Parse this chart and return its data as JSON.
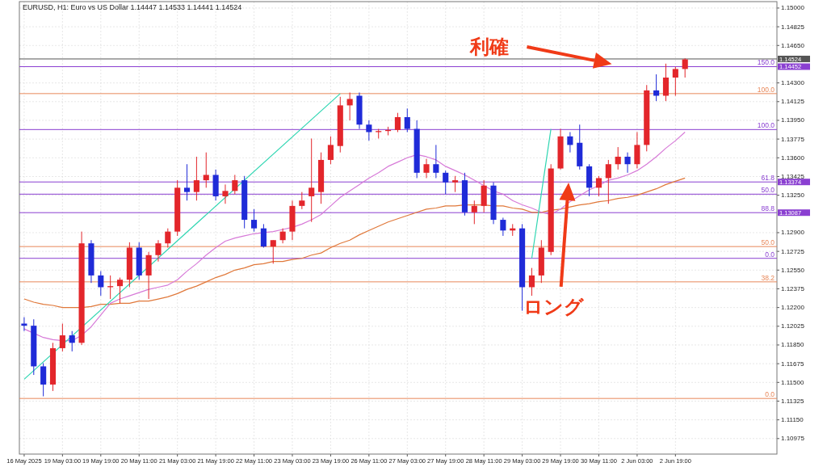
{
  "chart_data": {
    "type": "candlestick",
    "title": "EURUSD, H1:  Euro vs US Dollar  1.14447 1.14533 1.14441 1.14524",
    "categories": [
      "16 May 2025",
      null,
      null,
      null,
      "19 May 03:00",
      null,
      null,
      null,
      "19 May 19:00",
      null,
      null,
      null,
      "20 May 11:00",
      null,
      null,
      null,
      "21 May 03:00",
      null,
      null,
      null,
      "21 May 19:00",
      null,
      null,
      null,
      "22 May 11:00",
      null,
      null,
      null,
      "23 May 03:00",
      null,
      null,
      null,
      "23 May 19:00",
      null,
      null,
      null,
      "26 May 11:00",
      null,
      null,
      null,
      "27 May 03:00",
      null,
      null,
      null,
      "27 May 19:00",
      null,
      null,
      null,
      "28 May 11:00",
      null,
      null,
      null,
      "29 May 03:00",
      null,
      null,
      null,
      "29 May 19:00",
      null,
      null,
      null,
      "30 May 11:00",
      null,
      null,
      null,
      "2 Jun 03:00",
      null,
      null,
      null,
      "2 Jun 19:00",
      null
    ],
    "ohlc": [
      [
        1.1205,
        1.1211,
        1.1198,
        1.1203
      ],
      [
        1.1203,
        1.1209,
        1.1157,
        1.1165
      ],
      [
        1.1165,
        1.1168,
        1.1137,
        1.1148
      ],
      [
        1.1148,
        1.1187,
        1.1142,
        1.1182
      ],
      [
        1.1182,
        1.1205,
        1.1179,
        1.1194
      ],
      [
        1.1194,
        1.1198,
        1.1179,
        1.1187
      ],
      [
        1.1187,
        1.1291,
        1.1185,
        1.128
      ],
      [
        1.128,
        1.1283,
        1.1243,
        1.125
      ],
      [
        1.125,
        1.1254,
        1.1231,
        1.1239
      ],
      [
        1.1239,
        1.125,
        1.1228,
        1.124
      ],
      [
        1.124,
        1.1248,
        1.1224,
        1.1246
      ],
      [
        1.1246,
        1.1281,
        1.1239,
        1.1276
      ],
      [
        1.1276,
        1.1281,
        1.1246,
        1.125
      ],
      [
        1.125,
        1.1272,
        1.1228,
        1.1269
      ],
      [
        1.1269,
        1.1283,
        1.1263,
        1.128
      ],
      [
        1.128,
        1.1294,
        1.1276,
        1.1291
      ],
      [
        1.1291,
        1.1339,
        1.1287,
        1.1332
      ],
      [
        1.1332,
        1.1354,
        1.132,
        1.1328
      ],
      [
        1.1328,
        1.1361,
        1.132,
        1.1339
      ],
      [
        1.1339,
        1.1365,
        1.1332,
        1.1344
      ],
      [
        1.1344,
        1.1349,
        1.132,
        1.1324
      ],
      [
        1.1324,
        1.1335,
        1.1317,
        1.1329
      ],
      [
        1.1329,
        1.1344,
        1.1326,
        1.1339
      ],
      [
        1.1339,
        1.1343,
        1.1294,
        1.1302
      ],
      [
        1.1302,
        1.1312,
        1.1291,
        1.1294
      ],
      [
        1.1294,
        1.1298,
        1.1276,
        1.1277
      ],
      [
        1.1277,
        1.1283,
        1.1261,
        1.1283
      ],
      [
        1.1283,
        1.1294,
        1.128,
        1.1291
      ],
      [
        1.1291,
        1.132,
        1.1283,
        1.1315
      ],
      [
        1.1315,
        1.1328,
        1.1312,
        1.132
      ],
      [
        1.1324,
        1.1378,
        1.13,
        1.1332
      ],
      [
        1.1328,
        1.1365,
        1.1317,
        1.1358
      ],
      [
        1.1358,
        1.138,
        1.1354,
        1.1372
      ],
      [
        1.1371,
        1.1417,
        1.1365,
        1.1409
      ],
      [
        1.1409,
        1.1421,
        1.1395,
        1.1415
      ],
      [
        1.1418,
        1.1421,
        1.1387,
        1.1391
      ],
      [
        1.1391,
        1.1395,
        1.1376,
        1.1384
      ],
      [
        1.1384,
        1.1387,
        1.1378,
        1.1385
      ],
      [
        1.1385,
        1.1389,
        1.1381,
        1.1386
      ],
      [
        1.1386,
        1.1402,
        1.1384,
        1.1398
      ],
      [
        1.1398,
        1.1406,
        1.1384,
        1.1387
      ],
      [
        1.1387,
        1.1395,
        1.1341,
        1.1346
      ],
      [
        1.1346,
        1.1359,
        1.1341,
        1.1354
      ],
      [
        1.1354,
        1.1372,
        1.1341,
        1.1346
      ],
      [
        1.1346,
        1.1348,
        1.1326,
        1.1337
      ],
      [
        1.1337,
        1.1343,
        1.1328,
        1.1339
      ],
      [
        1.1339,
        1.1346,
        1.1306,
        1.1309
      ],
      [
        1.1309,
        1.132,
        1.1298,
        1.1315
      ],
      [
        1.1315,
        1.1339,
        1.1309,
        1.1334
      ],
      [
        1.1334,
        1.1337,
        1.1298,
        1.1302
      ],
      [
        1.1302,
        1.1304,
        1.1287,
        1.1292
      ],
      [
        1.1292,
        1.1298,
        1.1287,
        1.1294
      ],
      [
        1.1294,
        1.1298,
        1.1217,
        1.1239
      ],
      [
        1.1239,
        1.1257,
        1.1231,
        1.125
      ],
      [
        1.125,
        1.1283,
        1.1243,
        1.1276
      ],
      [
        1.1272,
        1.1354,
        1.1269,
        1.135
      ],
      [
        1.135,
        1.1387,
        1.1349,
        1.138
      ],
      [
        1.138,
        1.1384,
        1.1365,
        1.1372
      ],
      [
        1.1374,
        1.1391,
        1.1349,
        1.1352
      ],
      [
        1.1352,
        1.1354,
        1.1324,
        1.1332
      ],
      [
        1.1332,
        1.1343,
        1.1324,
        1.1341
      ],
      [
        1.1341,
        1.1358,
        1.1317,
        1.1354
      ],
      [
        1.1354,
        1.137,
        1.1349,
        1.1361
      ],
      [
        1.1361,
        1.1365,
        1.1346,
        1.1354
      ],
      [
        1.1354,
        1.1384,
        1.135,
        1.1372
      ],
      [
        1.1372,
        1.1428,
        1.1366,
        1.1423
      ],
      [
        1.1423,
        1.1438,
        1.1413,
        1.1418
      ],
      [
        1.1418,
        1.1448,
        1.1413,
        1.1435
      ],
      [
        1.1435,
        1.1445,
        1.1418,
        1.1443
      ],
      [
        1.1443,
        1.1453,
        1.1435,
        1.1452
      ]
    ],
    "series": [
      {
        "type": "line",
        "color": "#e0783a",
        "values": [
          1.1228,
          1.1225,
          1.1223,
          1.1222,
          1.122,
          1.122,
          1.122,
          1.1221,
          1.1223,
          1.1223,
          1.1224,
          1.1224,
          1.1226,
          1.1226,
          1.1228,
          1.123,
          1.1233,
          1.1237,
          1.124,
          1.1244,
          1.1248,
          1.1251,
          1.1255,
          1.1257,
          1.126,
          1.1261,
          1.1263,
          1.1263,
          1.1265,
          1.1266,
          1.1269,
          1.1271,
          1.1276,
          1.128,
          1.1283,
          1.1288,
          1.1292,
          1.1296,
          1.13,
          1.1303,
          1.1306,
          1.1309,
          1.1312,
          1.1313,
          1.1315,
          1.1315,
          1.1316,
          1.1316,
          1.1316,
          1.1315,
          1.1315,
          1.1313,
          1.1312,
          1.1309,
          1.1309,
          1.1311,
          1.1312,
          1.1314,
          1.1316,
          1.1317,
          1.1319,
          1.132,
          1.1322,
          1.1323,
          1.1325,
          1.1328,
          1.1331,
          1.1335,
          1.1338,
          1.1341
        ]
      },
      {
        "type": "line",
        "color": "#d77ad8",
        "values": [
          1.12,
          1.1196,
          1.1192,
          1.119,
          1.1189,
          1.1189,
          1.1194,
          1.1202,
          1.1213,
          1.1224,
          1.1228,
          1.1231,
          1.1234,
          1.1237,
          1.1239,
          1.1241,
          1.1246,
          1.1254,
          1.1261,
          1.1269,
          1.1276,
          1.1282,
          1.1285,
          1.1287,
          1.1289,
          1.129,
          1.1291,
          1.1293,
          1.1295,
          1.1298,
          1.1302,
          1.1307,
          1.1315,
          1.1323,
          1.1329,
          1.1335,
          1.1341,
          1.1346,
          1.1352,
          1.1356,
          1.136,
          1.1363,
          1.1361,
          1.1358,
          1.1352,
          1.1348,
          1.1344,
          1.1339,
          1.1334,
          1.1329,
          1.1326,
          1.132,
          1.1316,
          1.1313,
          1.1309,
          1.1307,
          1.1312,
          1.1319,
          null,
          1.133,
          1.1334,
          1.1339,
          1.1341,
          1.1344,
          1.1348,
          1.1354,
          1.1361,
          1.1369,
          1.1376,
          1.1384
        ]
      },
      {
        "type": "line",
        "color": "#2fd6b2",
        "values": [
          1.1153,
          null,
          null,
          null,
          null,
          null,
          null,
          null,
          null,
          null,
          null,
          null,
          null,
          null,
          null,
          null,
          null,
          null,
          null,
          null,
          null,
          null,
          null,
          null,
          null,
          null,
          null,
          null,
          null,
          null,
          null,
          null,
          null,
          1.142,
          null,
          null,
          null,
          null,
          null,
          null,
          null,
          null,
          null,
          null,
          null,
          null,
          null,
          null,
          null,
          null,
          null,
          null,
          null,
          null,
          null,
          null,
          null,
          null,
          null,
          null,
          null,
          null,
          null,
          null,
          null,
          null,
          null,
          null,
          null,
          null
        ]
      },
      {
        "type": "line",
        "color": "#2fd6b2",
        "values": [
          null,
          null,
          null,
          null,
          null,
          null,
          null,
          null,
          null,
          null,
          null,
          null,
          null,
          null,
          null,
          null,
          null,
          null,
          null,
          null,
          null,
          null,
          null,
          null,
          null,
          null,
          null,
          null,
          null,
          null,
          null,
          null,
          null,
          null,
          null,
          null,
          null,
          null,
          null,
          null,
          null,
          null,
          null,
          null,
          null,
          null,
          null,
          null,
          null,
          null,
          null,
          null,
          null,
          1.1266,
          null,
          1.1387,
          null,
          null,
          null,
          null,
          null,
          null,
          null,
          null,
          null,
          null,
          null,
          null,
          null,
          null
        ]
      }
    ],
    "ylim": [
      1.1083,
      1.1506
    ],
    "yticks": [
      {
        "value": 1.15,
        "label": "1.15000"
      },
      {
        "value": 1.14825,
        "label": "1.14825"
      },
      {
        "value": 1.1465,
        "label": "1.14650"
      },
      {
        "value": 1.143,
        "label": "1.14300"
      },
      {
        "value": 1.14125,
        "label": "1.14125"
      },
      {
        "value": 1.1395,
        "label": "1.13950"
      },
      {
        "value": 1.13775,
        "label": "1.13775"
      },
      {
        "value": 1.136,
        "label": "1.13600"
      },
      {
        "value": 1.13425,
        "label": "1.13425"
      },
      {
        "value": 1.1325,
        "label": "1.13250"
      },
      {
        "value": 1.129,
        "label": "1.12900"
      },
      {
        "value": 1.12725,
        "label": "1.12725"
      },
      {
        "value": 1.1255,
        "label": "1.12550"
      },
      {
        "value": 1.12375,
        "label": "1.12375"
      },
      {
        "value": 1.122,
        "label": "1.12200"
      },
      {
        "value": 1.12025,
        "label": "1.12025"
      },
      {
        "value": 1.1185,
        "label": "1.11850"
      },
      {
        "value": 1.11675,
        "label": "1.11675"
      },
      {
        "value": 1.115,
        "label": "1.11500"
      },
      {
        "value": 1.11325,
        "label": "1.11325"
      },
      {
        "value": 1.1115,
        "label": "1.11150"
      },
      {
        "value": 1.10975,
        "label": "1.10975"
      }
    ],
    "grid": true,
    "ref_lines": [
      {
        "axis": "y",
        "value": 1.14524,
        "label": "1.14524",
        "color": "#555555"
      },
      {
        "axis": "y",
        "value": 1.14452,
        "label": "1.14452",
        "color": "#8a3fd1"
      },
      {
        "axis": "y",
        "value": 1.142,
        "color": "#e8885a"
      },
      {
        "axis": "y",
        "value": 1.13864,
        "color": "#8a3fd1"
      },
      {
        "axis": "y",
        "value": 1.13374,
        "label": "1.13374",
        "color": "#8a3fd1"
      },
      {
        "axis": "y",
        "value": 1.1326,
        "color": "#8a3fd1"
      },
      {
        "axis": "y",
        "value": 1.13087,
        "label": "1.13087",
        "color": "#8a3fd1"
      },
      {
        "axis": "y",
        "value": 1.1277,
        "color": "#e8885a"
      },
      {
        "axis": "y",
        "value": 1.1266,
        "color": "#8a3fd1"
      },
      {
        "axis": "y",
        "value": 1.1244,
        "color": "#e8885a"
      },
      {
        "axis": "y",
        "value": 1.1135,
        "color": "#e8885a"
      }
    ],
    "annotations": [
      "利確",
      "ロング",
      "150.0",
      "100.0",
      "100.0",
      "61.8",
      "50.0",
      "88.8",
      "50.0",
      "0.0",
      "38.2",
      "0.0"
    ]
  }
}
